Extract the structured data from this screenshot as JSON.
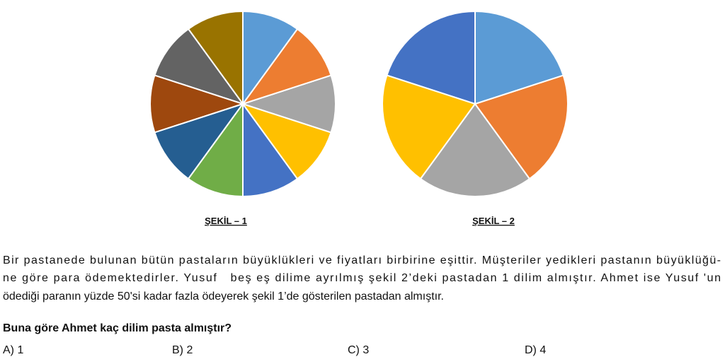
{
  "chart_data": [
    {
      "type": "pie",
      "title": "ŞEKİL – 1",
      "values": [
        10,
        10,
        10,
        10,
        10,
        10,
        10,
        10,
        10,
        10
      ],
      "colors": [
        "#5b9bd5",
        "#ed7d31",
        "#a5a5a5",
        "#ffc000",
        "#4472c4",
        "#70ad47",
        "#255e91",
        "#9e480e",
        "#636363",
        "#997300"
      ]
    },
    {
      "type": "pie",
      "title": "ŞEKİL – 2",
      "values": [
        20,
        20,
        20,
        20,
        20
      ],
      "colors": [
        "#5b9bd5",
        "#ed7d31",
        "#a5a5a5",
        "#ffc000",
        "#4472c4"
      ]
    }
  ],
  "question": {
    "paragraph": [
      "Bir pastanede bulunan bütün pastaların büyüklükleri ve fiyatları birbirine eşittir. Müşteriler yedikleri pastanın büyüklüğü-",
      "ne göre para ödemektedirler. Yusuf   beş eş dilime ayrılmış şekil 2’deki pastadan 1 dilim almıştır. Ahmet ise Yusuf 'un",
      "ödediği paranın yüzde 50'si kadar fazla ödeyerek şekil 1’de gösterilen pastadan almıştır."
    ],
    "prompt": "Buna göre Ahmet kaç dilim pasta almıştır?",
    "options": [
      "A) 1",
      "B) 2",
      "C) 3",
      "D) 4"
    ]
  }
}
